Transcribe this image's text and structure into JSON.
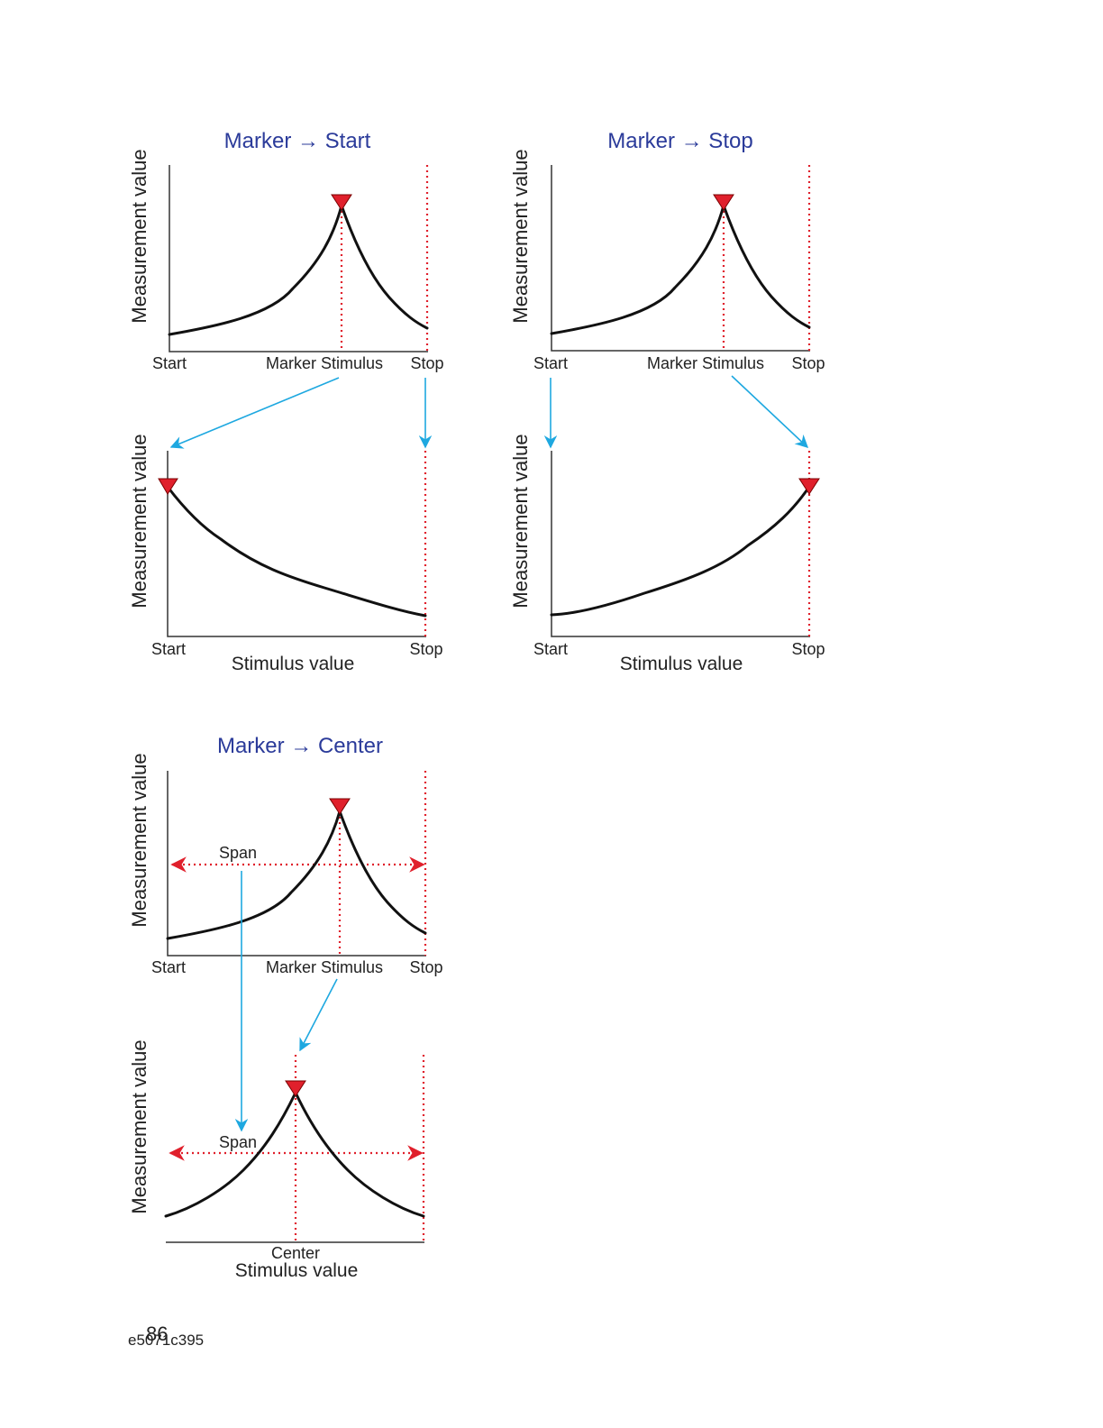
{
  "diagrams": {
    "start": {
      "title": "Marker → Start",
      "top_ylabel": "Measurement value",
      "top_xlabels": {
        "start": "Start",
        "marker": "Marker Stimulus",
        "stop": "Stop"
      },
      "bottom_ylabel": "Measurement value",
      "bottom_xlabels": {
        "start": "Start",
        "stop": "Stop"
      },
      "bottom_axis_title": "Stimulus value"
    },
    "stop": {
      "title": "Marker → Stop",
      "top_ylabel": "Measurement value",
      "top_xlabels": {
        "start": "Start",
        "marker": "Marker Stimulus",
        "stop": "Stop"
      },
      "bottom_ylabel": "Measurement value",
      "bottom_xlabels": {
        "start": "Start",
        "stop": "Stop"
      },
      "bottom_axis_title": "Stimulus value"
    },
    "center": {
      "title": "Marker → Center",
      "top_ylabel": "Measurement value",
      "top_xlabels": {
        "start": "Start",
        "marker": "Marker Stimulus",
        "stop": "Stop"
      },
      "top_span": "Span",
      "bottom_ylabel": "Measurement value",
      "bottom_span": "Span",
      "bottom_center": "Center",
      "bottom_axis_title": "Stimulus value"
    }
  },
  "colors": {
    "title": "#2b3b9a",
    "marker": "#e0202c",
    "arrow": "#1ea8e0"
  },
  "footer": {
    "page_number": "86",
    "doc_code": "e5071c395"
  }
}
